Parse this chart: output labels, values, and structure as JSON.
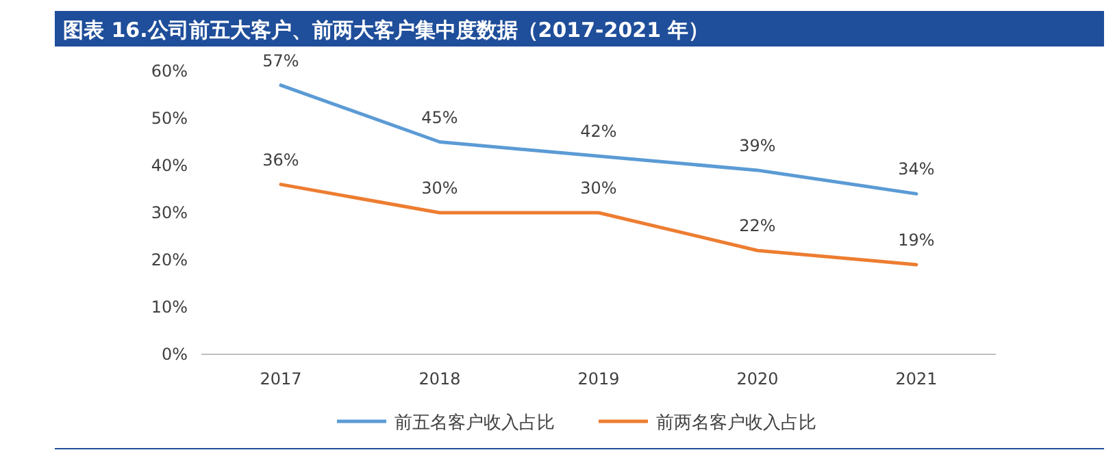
{
  "chart_data": {
    "type": "line",
    "title": "图表 16.公司前五大客户、前两大客户集中度数据（2017-2021 年）",
    "categories": [
      "2017",
      "2018",
      "2019",
      "2020",
      "2021"
    ],
    "series": [
      {
        "name": "前五名客户收入占比",
        "color": "#5b9bd5",
        "values": [
          57,
          45,
          42,
          39,
          34
        ],
        "value_labels": [
          "57%",
          "45%",
          "42%",
          "39%",
          "34%"
        ]
      },
      {
        "name": "前两名客户收入占比",
        "color": "#ed7d31",
        "values": [
          36,
          30,
          30,
          22,
          19
        ],
        "value_labels": [
          "36%",
          "30%",
          "30%",
          "22%",
          "19%"
        ]
      }
    ],
    "ylim": [
      0,
      60
    ],
    "yticks": [
      {
        "value": 0,
        "label": "0%"
      },
      {
        "value": 10,
        "label": "10%"
      },
      {
        "value": 20,
        "label": "20%"
      },
      {
        "value": 30,
        "label": "30%"
      },
      {
        "value": 40,
        "label": "40%"
      },
      {
        "value": 50,
        "label": "50%"
      },
      {
        "value": 60,
        "label": "60%"
      }
    ],
    "grid": false,
    "legend": "bottom",
    "marker": "none",
    "line_style": "solid"
  }
}
